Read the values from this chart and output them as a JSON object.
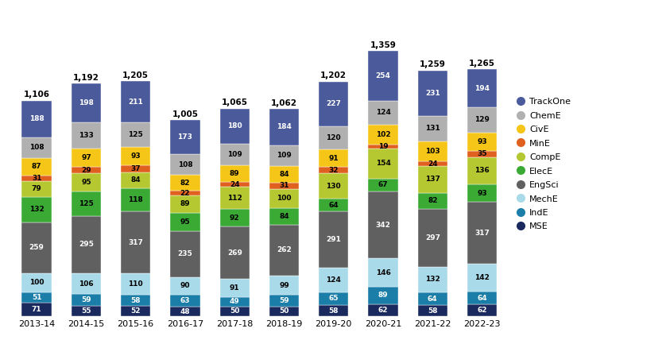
{
  "years": [
    "2013-14",
    "2014-15",
    "2015-16",
    "2016-17",
    "2017-18",
    "2018-19",
    "2019-20",
    "2020-21",
    "2021-22",
    "2022-23"
  ],
  "totals": [
    1106,
    1192,
    1205,
    1005,
    1065,
    1062,
    1202,
    1359,
    1259,
    1265
  ],
  "series": {
    "MSE": [
      71,
      55,
      52,
      48,
      50,
      50,
      58,
      62,
      58,
      62
    ],
    "IndE": [
      51,
      59,
      58,
      63,
      49,
      59,
      65,
      89,
      64,
      64
    ],
    "MechE": [
      100,
      106,
      110,
      90,
      91,
      99,
      124,
      146,
      132,
      142
    ],
    "EngSci": [
      259,
      295,
      317,
      235,
      269,
      262,
      291,
      342,
      297,
      317
    ],
    "ElecE": [
      132,
      125,
      118,
      95,
      92,
      84,
      64,
      67,
      82,
      93
    ],
    "CompE": [
      79,
      95,
      84,
      89,
      112,
      100,
      130,
      154,
      137,
      136
    ],
    "MinE": [
      31,
      29,
      37,
      22,
      24,
      31,
      32,
      19,
      24,
      35
    ],
    "CivE": [
      87,
      97,
      93,
      82,
      89,
      84,
      91,
      102,
      103,
      93
    ],
    "ChemE": [
      108,
      133,
      125,
      108,
      109,
      109,
      120,
      124,
      131,
      129
    ],
    "TrackOne": [
      188,
      198,
      211,
      173,
      180,
      184,
      227,
      254,
      231,
      194
    ]
  },
  "colors": {
    "MSE": "#1a2a5e",
    "IndE": "#1a7ea8",
    "MechE": "#a8daea",
    "EngSci": "#606060",
    "ElecE": "#3aaa35",
    "CompE": "#b5c832",
    "MinE": "#e06020",
    "CivE": "#f5c518",
    "ChemE": "#b0b0b0",
    "TrackOne": "#4a5a9a"
  },
  "stack_order": [
    "MSE",
    "IndE",
    "MechE",
    "EngSci",
    "ElecE",
    "CompE",
    "MinE",
    "CivE",
    "ChemE",
    "TrackOne"
  ],
  "legend_order": [
    "TrackOne",
    "ChemE",
    "CivE",
    "MinE",
    "CompE",
    "ElecE",
    "EngSci",
    "MechE",
    "IndE",
    "MSE"
  ],
  "white_text": [
    "MSE",
    "IndE",
    "TrackOne",
    "EngSci"
  ],
  "bar_width": 0.6
}
